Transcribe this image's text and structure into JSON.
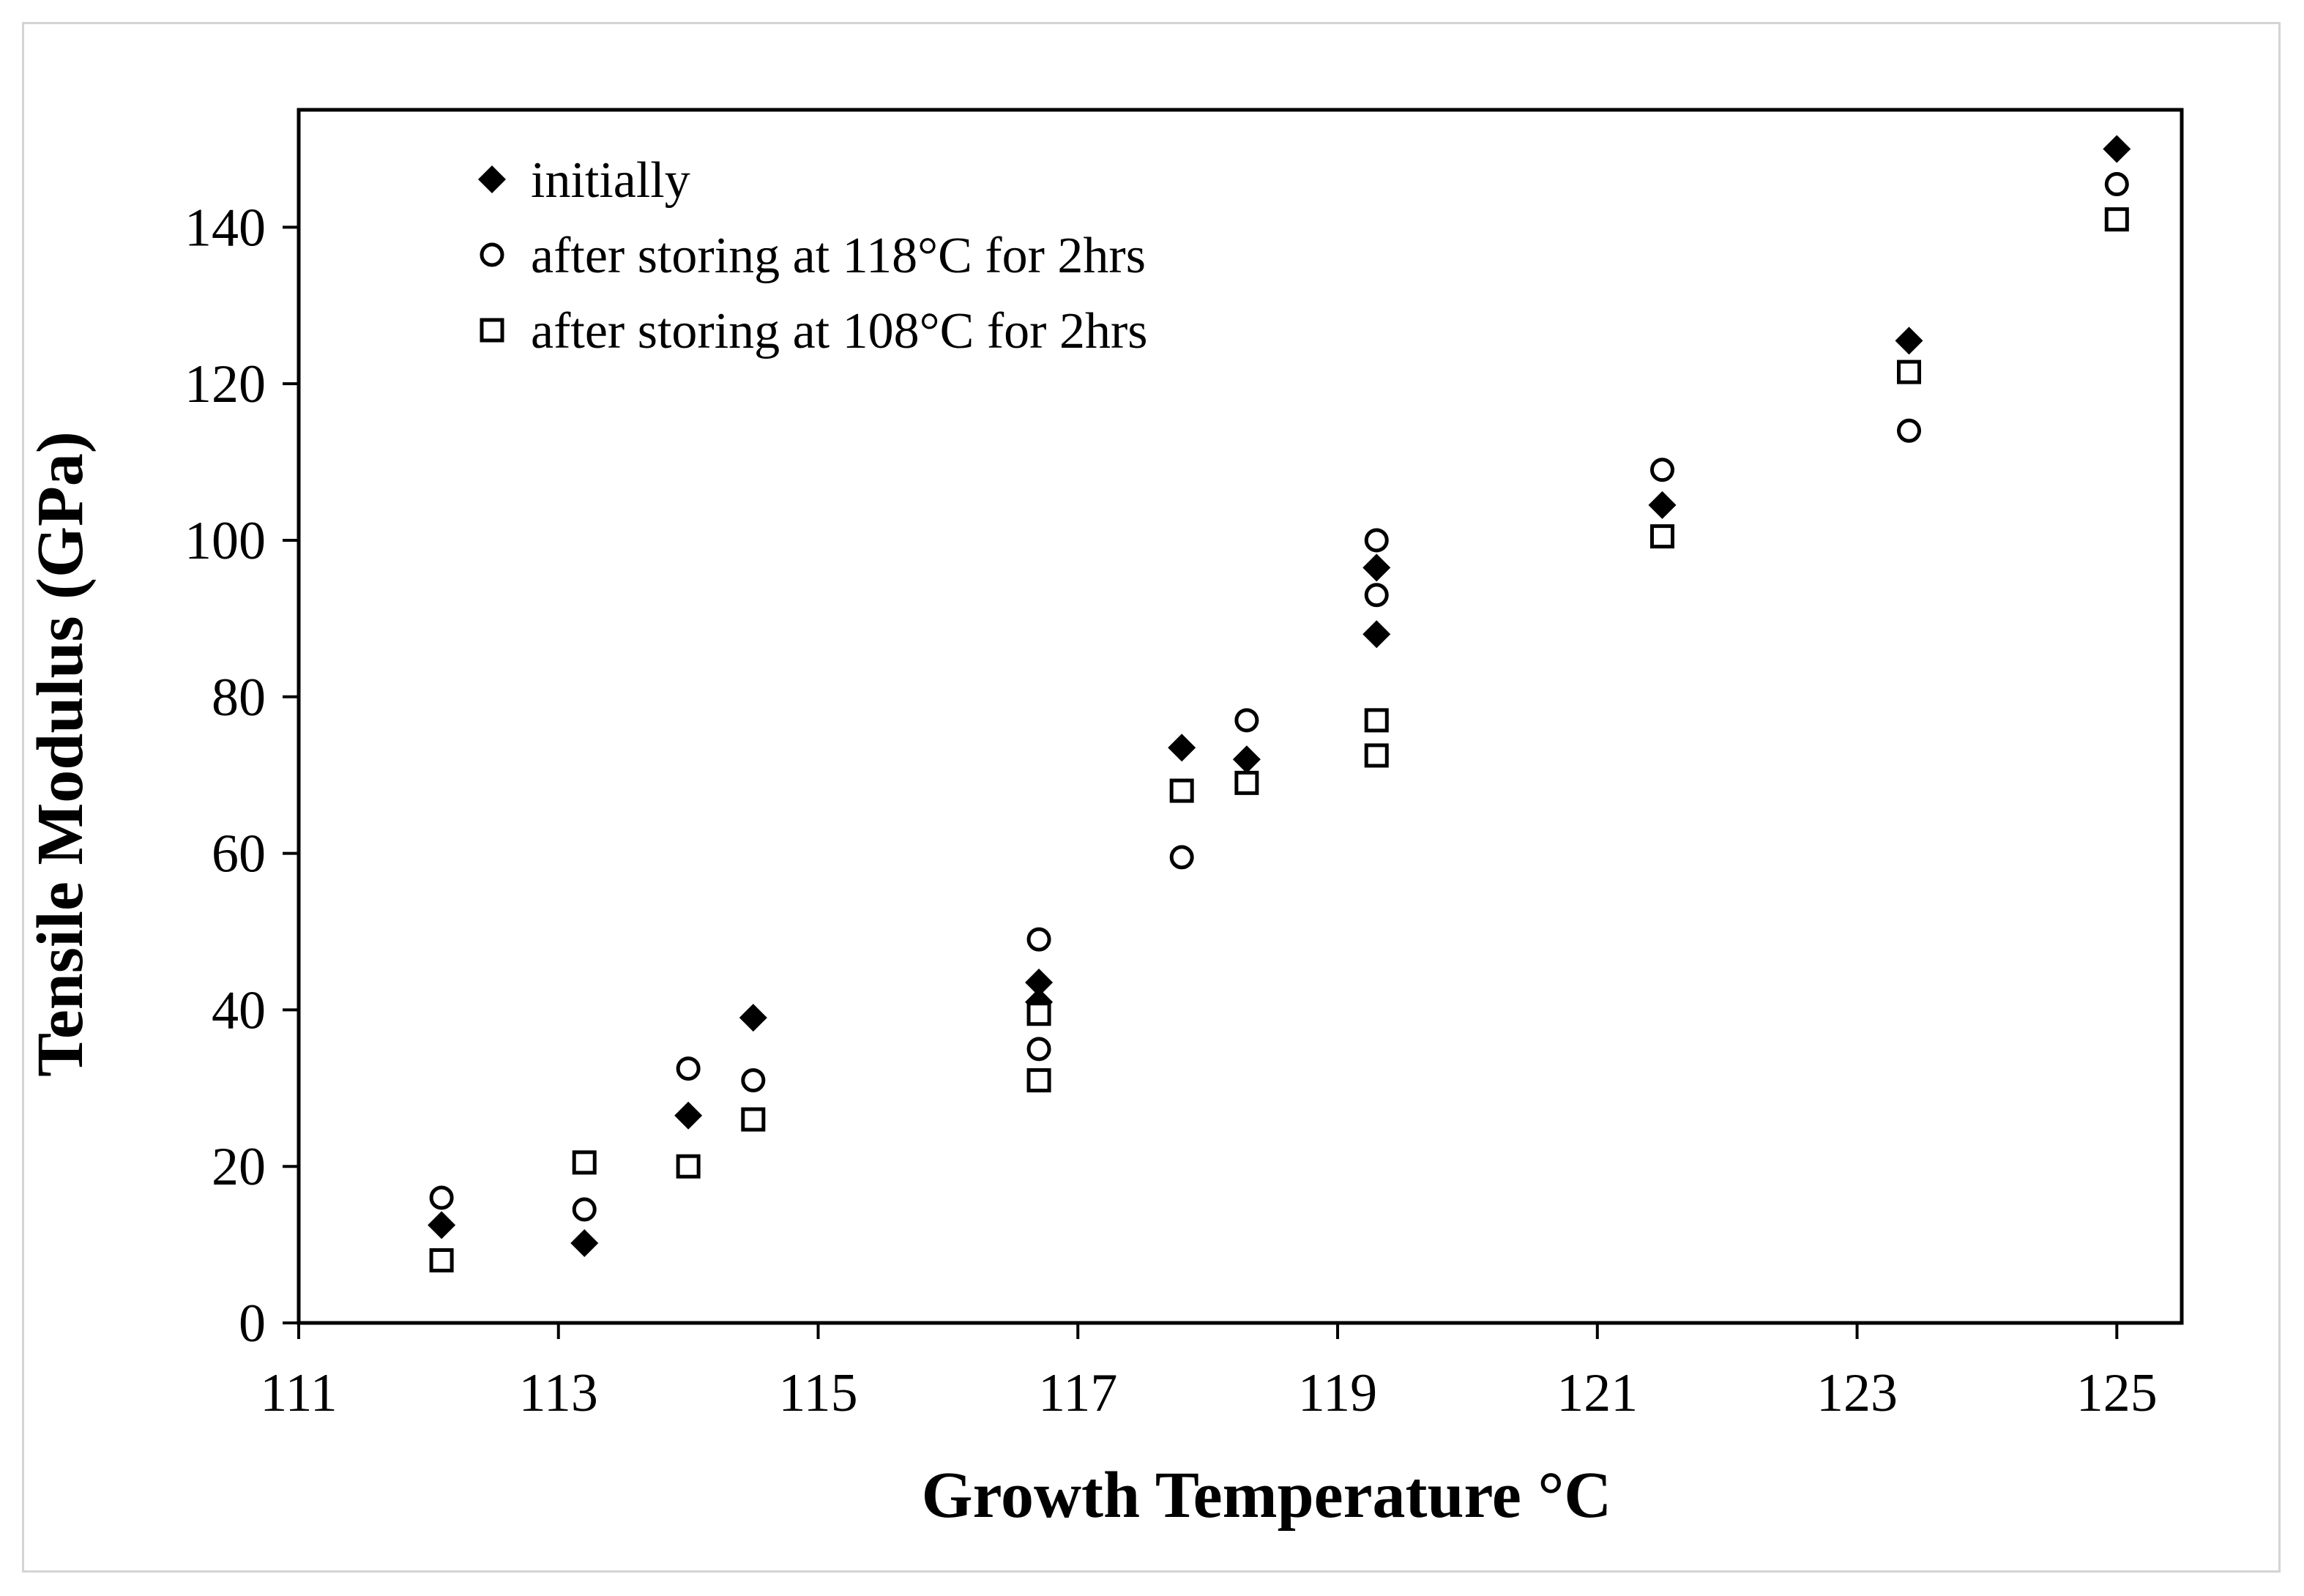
{
  "chart_data": {
    "type": "scatter",
    "title": "",
    "xlabel": "Growth Temperature °C",
    "ylabel": "Tensile Modulus (GPa)",
    "xlim": [
      111,
      125.5
    ],
    "ylim": [
      0,
      155
    ],
    "x_ticks": [
      111,
      113,
      115,
      117,
      119,
      121,
      123,
      125
    ],
    "y_ticks": [
      0,
      20,
      40,
      60,
      80,
      100,
      120,
      140
    ],
    "grid": false,
    "legend_position": "top-left",
    "series": [
      {
        "name": "initially",
        "marker": "filled-diamond",
        "points": [
          [
            112.1,
            12.5
          ],
          [
            113.2,
            10.2
          ],
          [
            114.0,
            26.5
          ],
          [
            114.5,
            39.0
          ],
          [
            116.7,
            43.5
          ],
          [
            116.7,
            41.0
          ],
          [
            117.8,
            73.5
          ],
          [
            118.3,
            72.0
          ],
          [
            119.3,
            96.5
          ],
          [
            119.3,
            88.0
          ],
          [
            121.5,
            104.5
          ],
          [
            123.4,
            125.5
          ],
          [
            125.0,
            150.0
          ]
        ]
      },
      {
        "name": "after storing at 118°C for 2hrs",
        "marker": "open-circle",
        "points": [
          [
            112.1,
            16.0
          ],
          [
            113.2,
            14.5
          ],
          [
            114.0,
            32.5
          ],
          [
            114.5,
            31.0
          ],
          [
            116.7,
            49.0
          ],
          [
            116.7,
            35.0
          ],
          [
            117.8,
            59.5
          ],
          [
            118.3,
            77.0
          ],
          [
            119.3,
            100.0
          ],
          [
            119.3,
            93.0
          ],
          [
            121.5,
            109.0
          ],
          [
            123.4,
            114.0
          ],
          [
            125.0,
            145.5
          ]
        ]
      },
      {
        "name": "after storing at 108°C for 2hrs",
        "marker": "open-square",
        "points": [
          [
            112.1,
            8.0
          ],
          [
            113.2,
            20.5
          ],
          [
            114.0,
            20.0
          ],
          [
            114.5,
            26.0
          ],
          [
            116.7,
            39.5
          ],
          [
            116.7,
            31.0
          ],
          [
            117.8,
            68.0
          ],
          [
            118.3,
            69.0
          ],
          [
            119.3,
            77.0
          ],
          [
            119.3,
            72.5
          ],
          [
            121.5,
            100.5
          ],
          [
            123.4,
            121.5
          ],
          [
            125.0,
            141.0
          ]
        ]
      }
    ]
  }
}
